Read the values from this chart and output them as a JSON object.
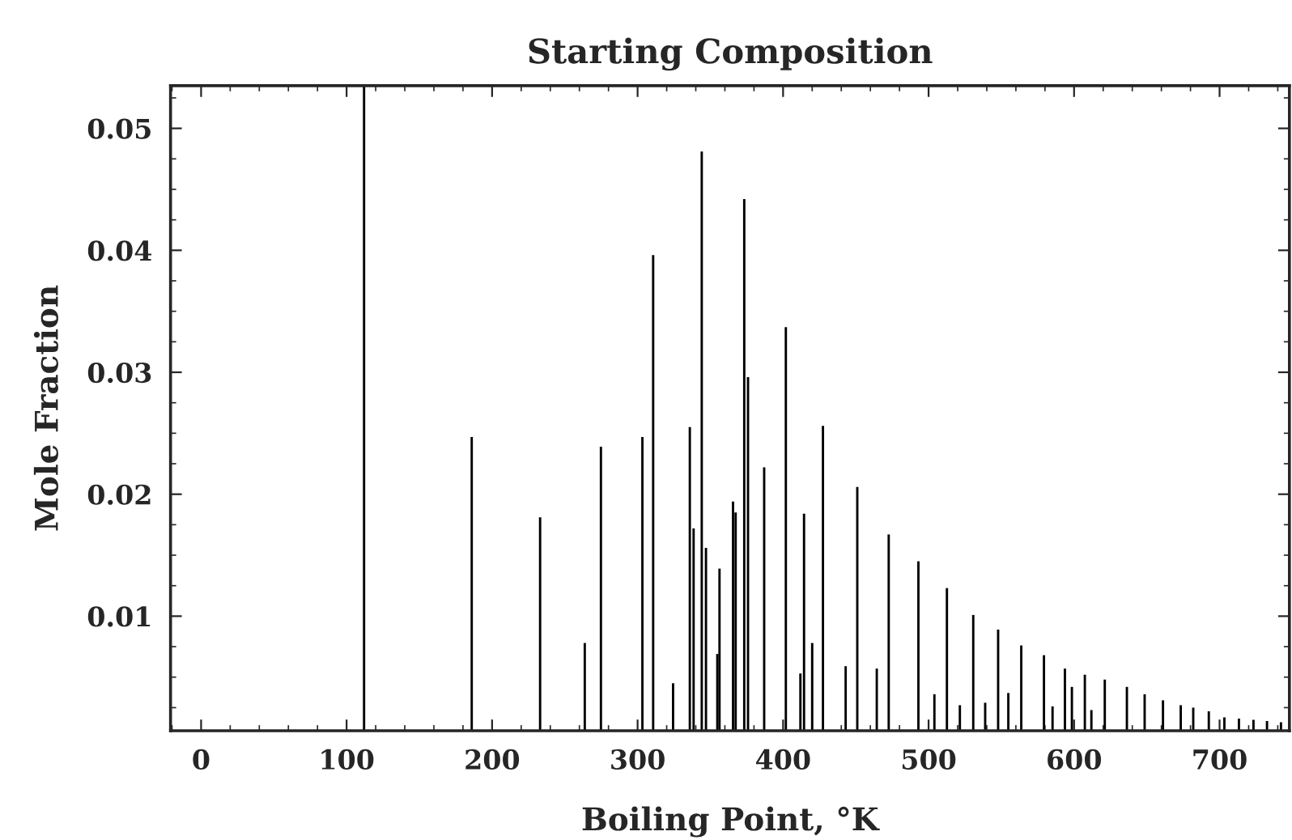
{
  "chart_data": {
    "type": "bar",
    "title": "Starting Composition",
    "xlabel": "Boiling Point, °K",
    "ylabel": "Mole Fraction",
    "x": [
      112,
      186,
      233,
      263.7,
      274.8,
      303.3,
      310.7,
      324.4,
      335.9,
      338.5,
      344.1,
      347,
      354.8,
      356.3,
      365.6,
      367.4,
      373.3,
      375.9,
      387,
      401.9,
      411.9,
      414.4,
      420,
      427.4,
      443,
      451,
      464.4,
      472.6,
      493,
      504,
      512.6,
      521.5,
      530.7,
      538.9,
      547.8,
      554.8,
      563.7,
      579.3,
      585.2,
      593.7,
      598.5,
      607.4,
      611.9,
      621.1,
      636.3,
      648.5,
      661.1,
      673.3,
      681.9,
      692.6,
      703.3,
      713.3,
      723.3,
      732.6,
      742.2
    ],
    "values": [
      0.0535,
      0.0247,
      0.0181,
      0.0078,
      0.0239,
      0.0247,
      0.0396,
      0.0045,
      0.0255,
      0.0172,
      0.0481,
      0.0156,
      0.0069,
      0.0139,
      0.0194,
      0.0185,
      0.0442,
      0.0296,
      0.0222,
      0.0337,
      0.0053,
      0.0184,
      0.0078,
      0.0256,
      0.0059,
      0.0206,
      0.0057,
      0.0167,
      0.0145,
      0.0036,
      0.0123,
      0.0027,
      0.0101,
      0.0029,
      0.0089,
      0.0037,
      0.0076,
      0.0068,
      0.0026,
      0.0057,
      0.0042,
      0.0052,
      0.0023,
      0.0048,
      0.0042,
      0.0036,
      0.0031,
      0.0027,
      0.0025,
      0.0022,
      0.0017,
      0.0016,
      0.0015,
      0.0014,
      0.0013
    ],
    "color": "#000000",
    "xlim": [
      -21,
      748
    ],
    "ylim": [
      0.0006,
      0.0535
    ],
    "xticks": [
      0,
      100,
      200,
      300,
      400,
      500,
      600,
      700
    ],
    "yticks": [
      {
        "value": 0.01,
        "label": "0.01"
      },
      {
        "value": 0.02,
        "label": "0.02"
      },
      {
        "value": 0.03,
        "label": "0.03"
      },
      {
        "value": 0.04,
        "label": "0.04"
      },
      {
        "value": 0.05,
        "label": "0.05"
      }
    ],
    "grid": false,
    "legend": false
  }
}
